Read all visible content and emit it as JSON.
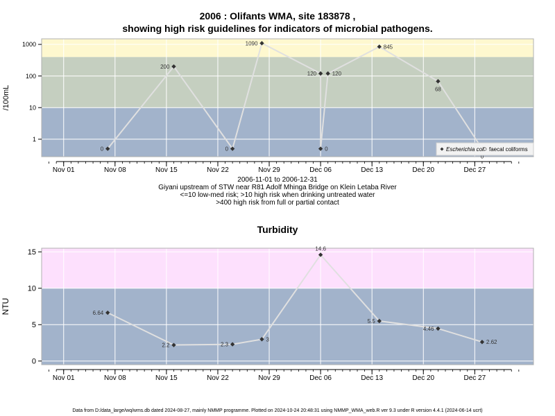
{
  "top": {
    "title_line1": "2006 : Olifants WMA, site 183878 ,",
    "title_line2": "showing high risk guidelines for indicators of microbial pathogens.",
    "caption": [
      "2006-11-01 to 2006-12-31",
      "Giyani upstream of STW near R81 Adolf Mhinga Bridge on Klein Letaba River",
      "<=10 low-med risk; >10 high risk when drinking untreated water",
      ">400 high risk from full or partial contact"
    ]
  },
  "bottom": {
    "title": "Turbidity"
  },
  "footer": "Data from D:/data_large/wq/wms.db dated 2024-08-27, mainly NMMP programme. Plotted on 2024-10-24 20:48:31 using NMMP_WMA_web.R ver 9.3 under R version 4.4.1 (2024-06-14 ucrt)",
  "colors": {
    "band_low": "#a2b3cb",
    "band_mid": "#c5cfc0",
    "band_high": "#fef8cf",
    "band_turb_high": "#fde0fd",
    "grid": "#ffffff",
    "line": "#e0e0e0",
    "point": "#333333"
  },
  "chart_data": [
    {
      "type": "line",
      "ylabel": "/100mL",
      "y_scale": "log",
      "ylim": [
        0.28,
        1500
      ],
      "xlim": [
        "2006-10-29",
        "2007-01-04"
      ],
      "x_ticks": [
        {
          "date": "2006-11-01",
          "label": "Nov 01"
        },
        {
          "date": "2006-11-08",
          "label": "Nov 08"
        },
        {
          "date": "2006-11-15",
          "label": "Nov 15"
        },
        {
          "date": "2006-11-22",
          "label": "Nov 22"
        },
        {
          "date": "2006-11-29",
          "label": "Nov 29"
        },
        {
          "date": "2006-12-06",
          "label": "Dec 06"
        },
        {
          "date": "2006-12-13",
          "label": "Dec 13"
        },
        {
          "date": "2006-12-20",
          "label": "Dec 20"
        },
        {
          "date": "2006-12-27",
          "label": "Dec 27"
        }
      ],
      "y_ticks": [
        {
          "value": 1,
          "label": "1"
        },
        {
          "value": 10,
          "label": "10"
        },
        {
          "value": 100,
          "label": "100"
        },
        {
          "value": 1000,
          "label": "1000"
        }
      ],
      "bands": [
        {
          "from": 0.28,
          "to": 10,
          "color": "#a2b3cb"
        },
        {
          "from": 10,
          "to": 400,
          "color": "#c5cfc0"
        },
        {
          "from": 400,
          "to": 1500,
          "color": "#fef8cf"
        }
      ],
      "grid": true,
      "legend_position": "bottom-right",
      "series": [
        {
          "name": "Escherichia coli",
          "marker": "diamond",
          "points": [
            {
              "x": "2006-11-07",
              "y": 0.5,
              "label": "0",
              "label_side": "left"
            },
            {
              "x": "2006-11-16",
              "y": 200,
              "label": "200",
              "label_side": "left"
            },
            {
              "x": "2006-11-24",
              "y": 0.5,
              "label": "0",
              "label_side": "left"
            },
            {
              "x": "2006-11-28",
              "y": 1090,
              "label": "1090",
              "label_side": "left"
            },
            {
              "x": "2006-12-06",
              "y": 120,
              "label": "120",
              "label_side": "left"
            },
            {
              "x": "2006-12-06",
              "y": 0.5,
              "label": "0",
              "label_side": "right"
            },
            {
              "x": "2006-12-07",
              "y": 120,
              "label": "120",
              "label_side": "right"
            },
            {
              "x": "2006-12-14",
              "y": 845,
              "label": "845",
              "label_side": "right"
            },
            {
              "x": "2006-12-22",
              "y": 68,
              "label": "68",
              "label_side": "below"
            },
            {
              "x": "2006-12-28",
              "y": 0.5,
              "label": "0",
              "label_side": "below"
            }
          ]
        },
        {
          "name": "faecal coliforms",
          "marker": "open-circle",
          "points": []
        }
      ]
    },
    {
      "type": "line",
      "title": "Turbidity",
      "ylabel": "NTU",
      "y_scale": "linear",
      "ylim": [
        -0.5,
        15.5
      ],
      "xlim": [
        "2006-10-29",
        "2007-01-04"
      ],
      "x_ticks": [
        {
          "date": "2006-11-01",
          "label": "Nov 01"
        },
        {
          "date": "2006-11-08",
          "label": "Nov 08"
        },
        {
          "date": "2006-11-15",
          "label": "Nov 15"
        },
        {
          "date": "2006-11-22",
          "label": "Nov 22"
        },
        {
          "date": "2006-11-29",
          "label": "Nov 29"
        },
        {
          "date": "2006-12-06",
          "label": "Dec 06"
        },
        {
          "date": "2006-12-13",
          "label": "Dec 13"
        },
        {
          "date": "2006-12-20",
          "label": "Dec 20"
        },
        {
          "date": "2006-12-27",
          "label": "Dec 27"
        }
      ],
      "y_ticks": [
        {
          "value": 0,
          "label": "0"
        },
        {
          "value": 5,
          "label": "5"
        },
        {
          "value": 10,
          "label": "10"
        },
        {
          "value": 15,
          "label": "15"
        }
      ],
      "bands": [
        {
          "from": -0.5,
          "to": 10,
          "color": "#a2b3cb"
        },
        {
          "from": 10,
          "to": 15.5,
          "color": "#fde0fd"
        }
      ],
      "grid": true,
      "series": [
        {
          "marker": "diamond",
          "points": [
            {
              "x": "2006-11-07",
              "y": 6.64,
              "label": "6.64",
              "label_side": "left"
            },
            {
              "x": "2006-11-16",
              "y": 2.2,
              "label": "2.2",
              "label_side": "left"
            },
            {
              "x": "2006-11-24",
              "y": 2.3,
              "label": "2.3",
              "label_side": "left"
            },
            {
              "x": "2006-11-28",
              "y": 3,
              "label": "3",
              "label_side": "right"
            },
            {
              "x": "2006-12-06",
              "y": 14.6,
              "label": "14.6",
              "label_side": "above"
            },
            {
              "x": "2006-12-14",
              "y": 5.5,
              "label": "5.5",
              "label_side": "left"
            },
            {
              "x": "2006-12-22",
              "y": 4.46,
              "label": "4.46",
              "label_side": "left"
            },
            {
              "x": "2006-12-28",
              "y": 2.62,
              "label": "2.62",
              "label_side": "right"
            }
          ]
        }
      ]
    }
  ]
}
